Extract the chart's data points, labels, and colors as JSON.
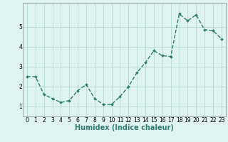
{
  "x": [
    0,
    1,
    2,
    3,
    4,
    5,
    6,
    7,
    8,
    9,
    10,
    11,
    12,
    13,
    14,
    15,
    16,
    17,
    18,
    19,
    20,
    21,
    22,
    23
  ],
  "y": [
    2.5,
    2.5,
    1.6,
    1.4,
    1.2,
    1.3,
    1.8,
    2.1,
    1.4,
    1.1,
    1.1,
    1.5,
    2.0,
    2.7,
    3.2,
    3.8,
    3.55,
    3.5,
    5.65,
    5.3,
    5.6,
    4.85,
    4.8,
    4.4
  ],
  "xlabel": "Humidex (Indice chaleur)",
  "xlim": [
    -0.5,
    23.5
  ],
  "ylim": [
    0.5,
    6.2
  ],
  "yticks": [
    1,
    2,
    3,
    4,
    5
  ],
  "xticks": [
    0,
    1,
    2,
    3,
    4,
    5,
    6,
    7,
    8,
    9,
    10,
    11,
    12,
    13,
    14,
    15,
    16,
    17,
    18,
    19,
    20,
    21,
    22,
    23
  ],
  "line_color": "#2d7d6e",
  "marker": "D",
  "marker_size": 1.8,
  "line_width": 1.0,
  "bg_color": "#dff4f0",
  "grid_color": "#aed4cc",
  "xlabel_fontsize": 7,
  "tick_fontsize": 5.5
}
